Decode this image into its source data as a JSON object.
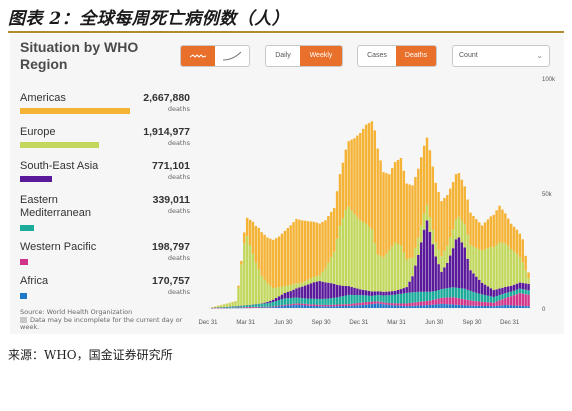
{
  "figure_title": "图表 2：全球每周死亡病例数（人）",
  "footer_source": "来源：WHO，国金证券研究所",
  "panel": {
    "title": "Situation by WHO Region",
    "freq_buttons": [
      "Daily",
      "Weekly"
    ],
    "metric_buttons": [
      "Cases",
      "Deaths"
    ],
    "count_select": "Count",
    "source": "Source: World Health Organization",
    "note": "Data may be incomplete for the current day or week."
  },
  "colors": {
    "accent": "#e8702a",
    "americas": "#f5b335",
    "europe": "#c2d85c",
    "sea": "#5a189a",
    "emr": "#1aab9b",
    "wpr": "#d1348a",
    "afr": "#1f77c8",
    "incomplete": "#c8c8c8"
  },
  "regions": [
    {
      "name": "Americas",
      "value": "2,667,880",
      "unit": "deaths",
      "color": "#f5b335",
      "share": 1.0
    },
    {
      "name": "Europe",
      "value": "1,914,977",
      "unit": "deaths",
      "color": "#c2d85c",
      "share": 0.718
    },
    {
      "name": "South-East Asia",
      "value": "771,101",
      "unit": "deaths",
      "color": "#5a189a",
      "share": 0.289
    },
    {
      "name": "Eastern Mediterranean",
      "value": "339,011",
      "unit": "deaths",
      "color": "#1aab9b",
      "share": 0.127
    },
    {
      "name": "Western Pacific",
      "value": "198,797",
      "unit": "deaths",
      "color": "#d1348a",
      "share": 0.075
    },
    {
      "name": "Africa",
      "value": "170,757",
      "unit": "deaths",
      "color": "#1f77c8",
      "share": 0.064
    }
  ],
  "chart_data": {
    "type": "bar",
    "stacked": true,
    "title": "",
    "xlabel": "",
    "ylabel": "",
    "ylim": [
      0,
      100000
    ],
    "y_ticks": [
      "100k",
      "50k",
      "0"
    ],
    "y_tick_values": [
      100000,
      50000,
      0
    ],
    "x_ticks": [
      "Dec 31",
      "Mar 31",
      "Jun 30",
      "Sep 30",
      "Dec 31",
      "Mar 31",
      "Jun 30",
      "Sep 30",
      "Dec 31"
    ],
    "x_tick_weeks": [
      0,
      13,
      26,
      39,
      52,
      65,
      78,
      91,
      104
    ],
    "x_unit": "week",
    "series": [
      {
        "name": "Africa",
        "color": "#1f77c8",
        "keys": [
          [
            0,
            0
          ],
          [
            10,
            5
          ],
          [
            14,
            50
          ],
          [
            22,
            400
          ],
          [
            26,
            1000
          ],
          [
            30,
            1400
          ],
          [
            34,
            1000
          ],
          [
            40,
            700
          ],
          [
            48,
            900
          ],
          [
            54,
            1400
          ],
          [
            58,
            2000
          ],
          [
            62,
            1300
          ],
          [
            68,
            800
          ],
          [
            76,
            1300
          ],
          [
            80,
            1800
          ],
          [
            84,
            1500
          ],
          [
            90,
            1000
          ],
          [
            98,
            800
          ],
          [
            102,
            1300
          ],
          [
            106,
            1000
          ],
          [
            110,
            800
          ]
        ]
      },
      {
        "name": "Western Pacific",
        "color": "#d1348a",
        "keys": [
          [
            0,
            0
          ],
          [
            6,
            60
          ],
          [
            10,
            200
          ],
          [
            14,
            400
          ],
          [
            20,
            250
          ],
          [
            26,
            400
          ],
          [
            32,
            700
          ],
          [
            40,
            600
          ],
          [
            48,
            800
          ],
          [
            54,
            1200
          ],
          [
            60,
            800
          ],
          [
            66,
            1000
          ],
          [
            72,
            1600
          ],
          [
            76,
            1900
          ],
          [
            80,
            2600
          ],
          [
            84,
            3200
          ],
          [
            88,
            2600
          ],
          [
            92,
            2000
          ],
          [
            98,
            1500
          ],
          [
            102,
            3000
          ],
          [
            105,
            4500
          ],
          [
            107,
            5500
          ],
          [
            110,
            5000
          ]
        ]
      },
      {
        "name": "Eastern Mediterranean",
        "color": "#1aab9b",
        "keys": [
          [
            0,
            0
          ],
          [
            10,
            600
          ],
          [
            14,
            800
          ],
          [
            20,
            1500
          ],
          [
            26,
            2800
          ],
          [
            32,
            2400
          ],
          [
            38,
            2500
          ],
          [
            44,
            3100
          ],
          [
            48,
            4000
          ],
          [
            52,
            3300
          ],
          [
            56,
            2500
          ],
          [
            60,
            3000
          ],
          [
            64,
            3800
          ],
          [
            68,
            4600
          ],
          [
            72,
            4400
          ],
          [
            78,
            3600
          ],
          [
            84,
            4300
          ],
          [
            88,
            4600
          ],
          [
            94,
            3200
          ],
          [
            98,
            2500
          ],
          [
            104,
            2000
          ],
          [
            110,
            1900
          ]
        ]
      },
      {
        "name": "South-East Asia",
        "color": "#5a189a",
        "keys": [
          [
            0,
            0
          ],
          [
            14,
            100
          ],
          [
            18,
            200
          ],
          [
            22,
            1000
          ],
          [
            28,
            3000
          ],
          [
            32,
            5000
          ],
          [
            36,
            7200
          ],
          [
            38,
            7800
          ],
          [
            42,
            6500
          ],
          [
            46,
            4500
          ],
          [
            52,
            2500
          ],
          [
            58,
            1600
          ],
          [
            64,
            1600
          ],
          [
            68,
            2500
          ],
          [
            70,
            7000
          ],
          [
            72,
            16000
          ],
          [
            74,
            27000
          ],
          [
            75,
            31000
          ],
          [
            76,
            26000
          ],
          [
            78,
            15000
          ],
          [
            80,
            7500
          ],
          [
            82,
            11000
          ],
          [
            84,
            17000
          ],
          [
            85,
            21000
          ],
          [
            86,
            22000
          ],
          [
            88,
            18000
          ],
          [
            90,
            9000
          ],
          [
            94,
            5000
          ],
          [
            98,
            3000
          ],
          [
            104,
            2500
          ],
          [
            110,
            2800
          ]
        ]
      },
      {
        "name": "Europe",
        "color": "#c2d85c",
        "keys": [
          [
            0,
            0
          ],
          [
            9,
            2000
          ],
          [
            10,
            8000
          ],
          [
            11,
            18000
          ],
          [
            12,
            27000
          ],
          [
            13,
            30000
          ],
          [
            14,
            26000
          ],
          [
            16,
            18000
          ],
          [
            18,
            12000
          ],
          [
            20,
            8000
          ],
          [
            22,
            5000
          ],
          [
            26,
            3000
          ],
          [
            32,
            1800
          ],
          [
            38,
            2500
          ],
          [
            40,
            6000
          ],
          [
            43,
            14000
          ],
          [
            45,
            26000
          ],
          [
            47,
            33000
          ],
          [
            48,
            34500
          ],
          [
            50,
            32000
          ],
          [
            52,
            30000
          ],
          [
            54,
            29000
          ],
          [
            56,
            27000
          ],
          [
            57,
            21000
          ],
          [
            58,
            16000
          ],
          [
            60,
            15000
          ],
          [
            62,
            18000
          ],
          [
            64,
            21000
          ],
          [
            66,
            19000
          ],
          [
            68,
            12000
          ],
          [
            70,
            8000
          ],
          [
            74,
            7000
          ],
          [
            78,
            6000
          ],
          [
            82,
            7500
          ],
          [
            86,
            9000
          ],
          [
            90,
            11000
          ],
          [
            94,
            14000
          ],
          [
            97,
            18000
          ],
          [
            100,
            20000
          ],
          [
            102,
            19000
          ],
          [
            104,
            16000
          ],
          [
            106,
            13000
          ],
          [
            108,
            9000
          ],
          [
            110,
            2500
          ]
        ]
      },
      {
        "name": "Americas",
        "color": "#f5b335",
        "keys": [
          [
            0,
            0
          ],
          [
            9,
            200
          ],
          [
            11,
            1500
          ],
          [
            13,
            8000
          ],
          [
            15,
            14000
          ],
          [
            17,
            18000
          ],
          [
            18,
            19000
          ],
          [
            20,
            20000
          ],
          [
            24,
            22000
          ],
          [
            26,
            24000
          ],
          [
            28,
            26000
          ],
          [
            30,
            28000
          ],
          [
            32,
            27000
          ],
          [
            36,
            24000
          ],
          [
            40,
            21000
          ],
          [
            43,
            19000
          ],
          [
            46,
            24000
          ],
          [
            50,
            33000
          ],
          [
            52,
            38000
          ],
          [
            54,
            43000
          ],
          [
            56,
            47000
          ],
          [
            57,
            49000
          ],
          [
            58,
            46000
          ],
          [
            60,
            37000
          ],
          [
            62,
            33000
          ],
          [
            64,
            35000
          ],
          [
            66,
            38000
          ],
          [
            68,
            33000
          ],
          [
            72,
            30000
          ],
          [
            76,
            29000
          ],
          [
            78,
            26000
          ],
          [
            82,
            22000
          ],
          [
            86,
            19000
          ],
          [
            90,
            14000
          ],
          [
            94,
            11000
          ],
          [
            98,
            14000
          ],
          [
            100,
            16000
          ],
          [
            102,
            13000
          ],
          [
            104,
            11000
          ],
          [
            108,
            10000
          ],
          [
            110,
            2500
          ]
        ]
      }
    ]
  }
}
